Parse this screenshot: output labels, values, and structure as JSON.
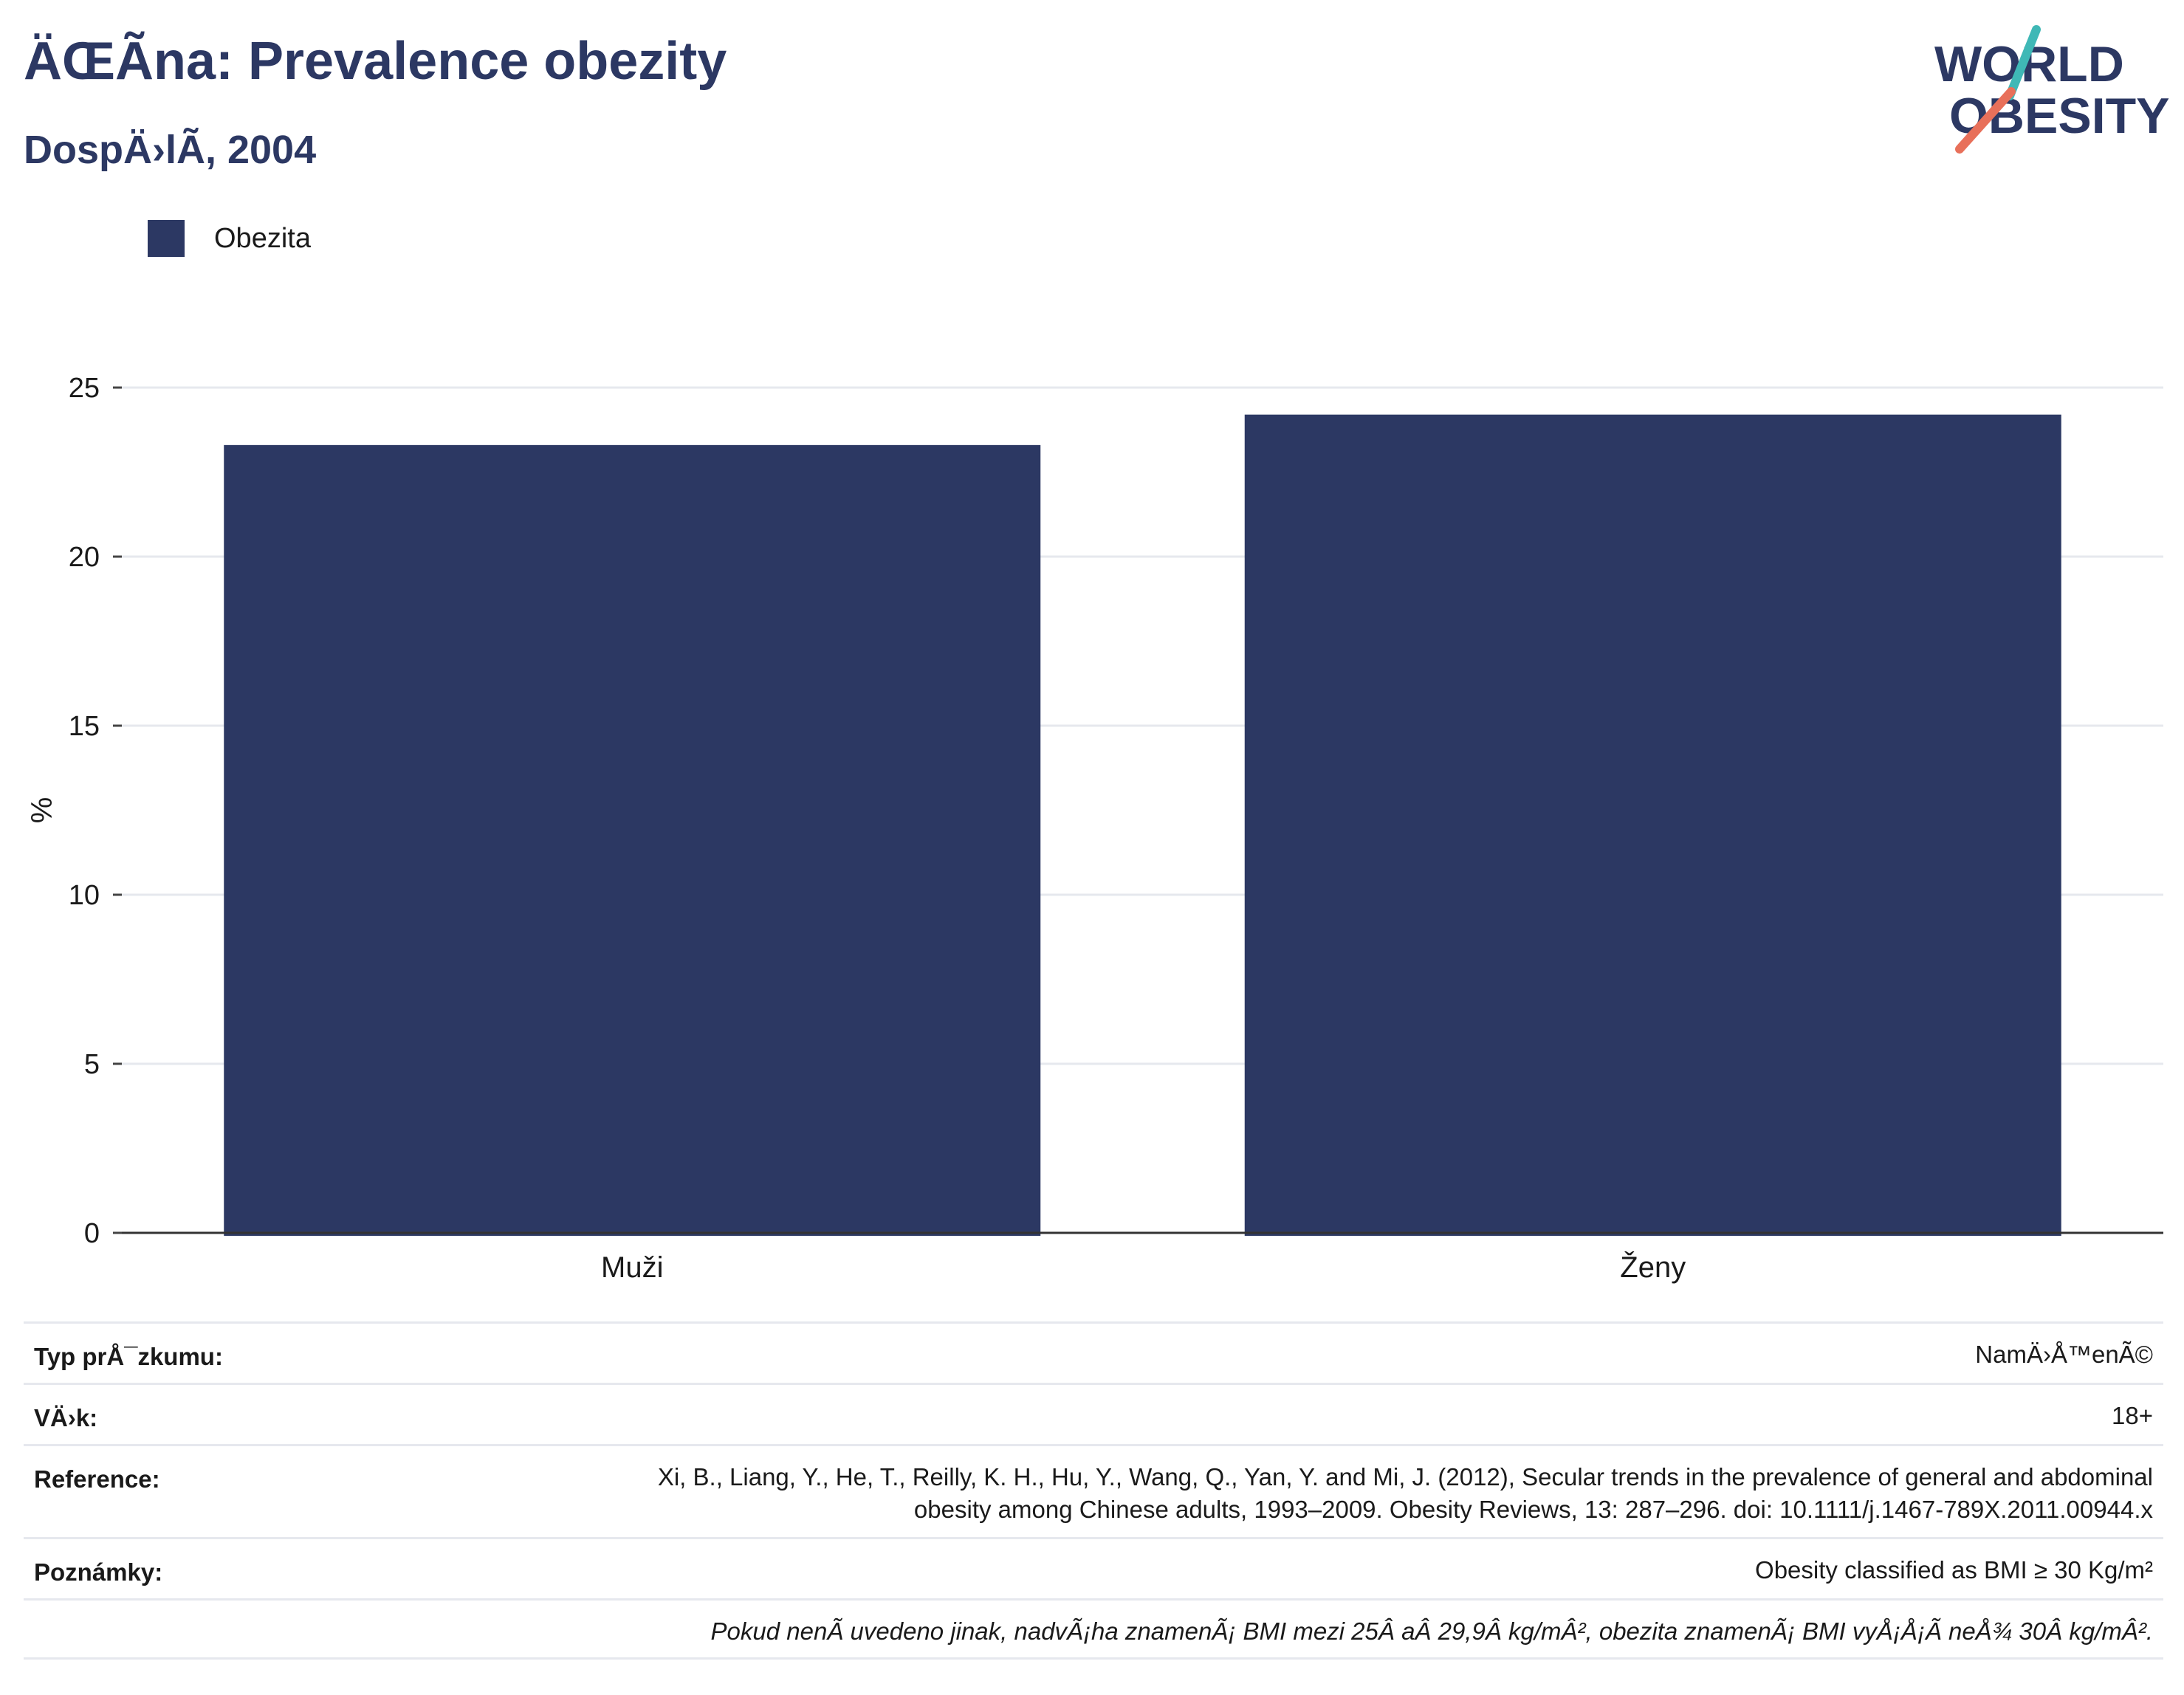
{
  "header": {
    "title": "ÄŒÃ­na: Prevalence obezity",
    "subtitle": "DospÄ›lÃ­, 2004",
    "logo_line1": "WORLD",
    "logo_line2": "OBESITY"
  },
  "legend": {
    "label": "Obezita"
  },
  "colors": {
    "bar": "#2c3863",
    "title": "#2c3863",
    "logo_slash_teal": "#3fb8b6",
    "logo_slash_coral": "#e8705a",
    "grid": "#e6e8ee"
  },
  "chart_data": {
    "type": "bar",
    "categories": [
      "Muži",
      "Ženy"
    ],
    "series": [
      {
        "name": "Obezita",
        "values": [
          23.3,
          24.2
        ]
      }
    ],
    "ylabel": "%",
    "xlabel": "",
    "ylim": [
      0,
      25
    ],
    "yticks": [
      0,
      5,
      10,
      15,
      20,
      25
    ],
    "grid": true,
    "legend_position": "top-left"
  },
  "info": {
    "survey_type_key": "Typ prÅ¯zkumu:",
    "survey_type_val": "NamÄ›Å™enÃ©",
    "age_key": "VÄ›k:",
    "age_val": "18+",
    "reference_key": "Reference:",
    "reference_line1": "Xi, B., Liang, Y., He, T., Reilly, K. H., Hu, Y., Wang, Q., Yan, Y. and Mi, J. (2012), Secular trends in the prevalence of general and abdominal",
    "reference_line2": "obesity among Chinese adults, 1993–2009. Obesity Reviews, 13: 287–296. doi: 10.1111/j.1467-789X.2011.00944.x",
    "notes_key": "Poznámky:",
    "notes_val": "Obesity classified as BMI ≥ 30 Kg/m²",
    "footnote": "Pokud nenÃ­ uvedeno jinak, nadvÃ¡ha znamenÃ¡ BMI mezi 25Â aÂ 29,9Â kg/mÂ², obezita znamenÃ¡ BMI vyÅ¡Å¡Ã­ neÅ¾ 30Â kg/mÂ²."
  }
}
